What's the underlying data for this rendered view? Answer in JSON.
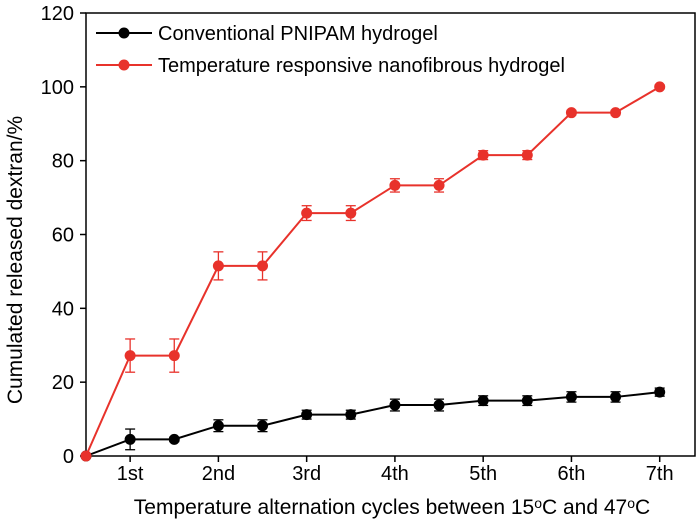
{
  "chart_data": {
    "type": "line",
    "title": "",
    "xlabel": "Temperature alternation cycles between 15°C and 47°C",
    "ylabel": "Cumulated released dextran/%",
    "ylim": [
      0,
      120
    ],
    "y_ticks": [
      "0",
      "20",
      "40",
      "60",
      "80",
      "100",
      "120"
    ],
    "x_tick_labels": [
      "1st",
      "2nd",
      "3rd",
      "4th",
      "5th",
      "6th",
      "7th"
    ],
    "x_tick_positions": [
      1,
      2,
      3,
      4,
      5,
      6,
      7
    ],
    "xlim": [
      0.5,
      7.4
    ],
    "legend_position": "top-left",
    "grid": false,
    "series": [
      {
        "name": "Conventional PNIPAM hydrogel",
        "color": "#000000",
        "marker": "circle",
        "x": [
          0.5,
          1,
          1.5,
          2,
          2.5,
          3,
          3.5,
          4,
          4.5,
          5,
          5.5,
          6,
          6.5,
          7
        ],
        "y": [
          0,
          4.5,
          4.5,
          8.2,
          8.2,
          11.2,
          11.2,
          13.8,
          13.8,
          15.0,
          15.0,
          16.0,
          16.0,
          17.3
        ],
        "err": [
          0,
          2.8,
          0.6,
          1.6,
          1.6,
          1.2,
          1.2,
          1.6,
          1.6,
          1.3,
          1.3,
          1.4,
          1.4,
          1.1
        ]
      },
      {
        "name": "Temperature responsive nanofibrous hydrogel",
        "color": "#e8322b",
        "marker": "circle",
        "x": [
          0.5,
          1,
          1.5,
          2,
          2.5,
          3,
          3.5,
          4,
          4.5,
          5,
          5.5,
          6,
          6.5,
          7
        ],
        "y": [
          0,
          27.2,
          27.2,
          51.5,
          51.5,
          65.8,
          65.8,
          73.3,
          73.3,
          81.5,
          81.5,
          93.0,
          93.0,
          100.0
        ],
        "err": [
          0,
          4.5,
          4.5,
          3.8,
          3.8,
          2.0,
          2.0,
          1.8,
          1.8,
          1.2,
          1.2,
          0.6,
          0.6,
          0.5
        ]
      }
    ]
  }
}
